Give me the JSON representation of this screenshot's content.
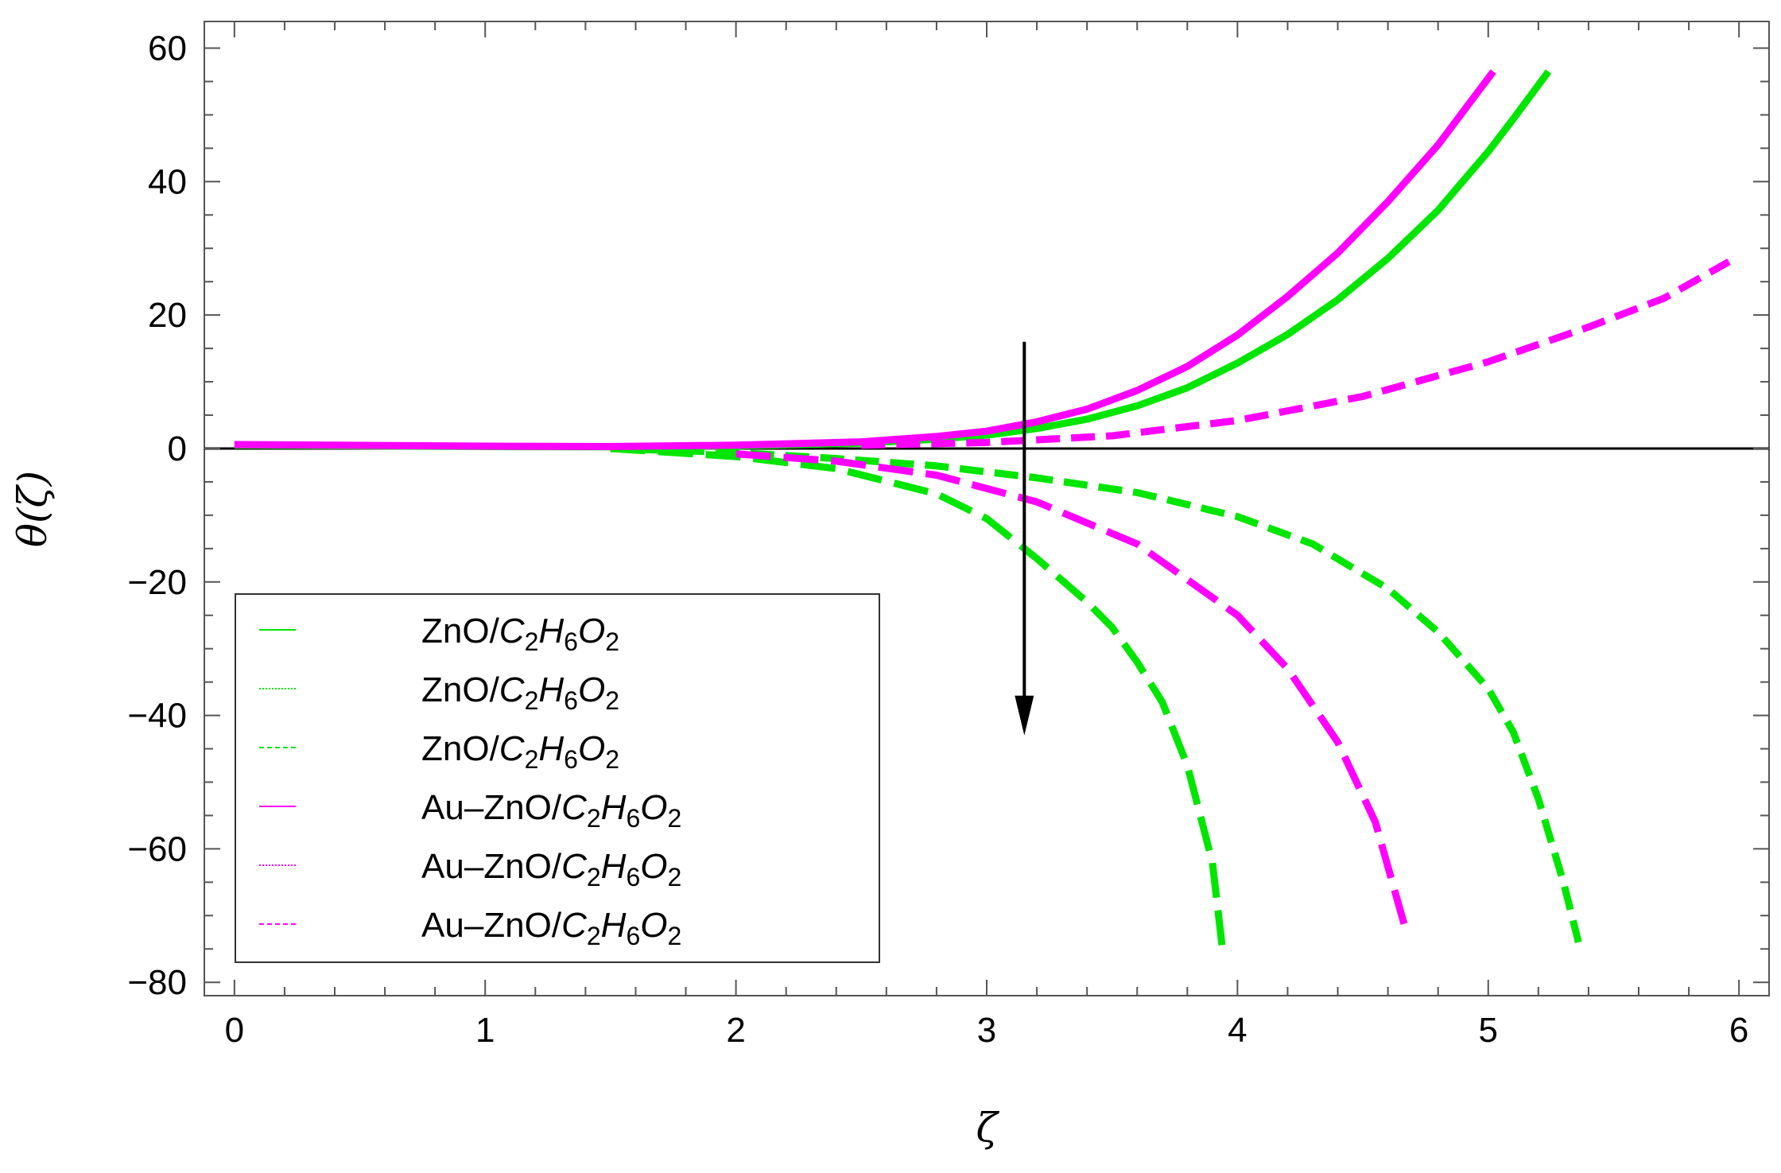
{
  "chart_data": {
    "type": "line",
    "xlabel": "ζ",
    "ylabel": "θ(ζ)",
    "xlim": [
      -0.12,
      6.12
    ],
    "ylim": [
      -82,
      64
    ],
    "xticks": [
      0,
      1,
      2,
      3,
      4,
      5,
      6
    ],
    "yticks": [
      -80,
      -60,
      -40,
      -20,
      0,
      20,
      40,
      60
    ],
    "ytick_labels": [
      "−80",
      "−60",
      "−40",
      "−20",
      "0",
      "20",
      "40",
      "60"
    ],
    "zero_line": true,
    "grid": false,
    "legend_position": "bottom-left",
    "annotation": {
      "type": "arrow",
      "direction": "down",
      "x": 3.15,
      "y_from": 16,
      "y_to": -43
    },
    "series": [
      {
        "name": "ZnO/C2H6O2",
        "legend_parts": [
          "ZnO/",
          "C",
          "2",
          "H",
          "6",
          "O",
          "2"
        ],
        "color": "#00e600",
        "style": "solid",
        "lw": 9,
        "points": [
          [
            0,
            0.5
          ],
          [
            1,
            0.3
          ],
          [
            1.5,
            0.25
          ],
          [
            2,
            0.4
          ],
          [
            2.5,
            0.8
          ],
          [
            2.8,
            1.4
          ],
          [
            3,
            2.0
          ],
          [
            3.2,
            3.0
          ],
          [
            3.4,
            4.4
          ],
          [
            3.6,
            6.4
          ],
          [
            3.8,
            9.1
          ],
          [
            4,
            12.8
          ],
          [
            4.2,
            17.1
          ],
          [
            4.4,
            22.3
          ],
          [
            4.6,
            28.5
          ],
          [
            4.8,
            35.7
          ],
          [
            5,
            44.5
          ],
          [
            5.1,
            49.4
          ],
          [
            5.24,
            56.5
          ]
        ]
      },
      {
        "name": "ZnO/C2H6O2",
        "legend_parts": [
          "ZnO/",
          "C",
          "2",
          "H",
          "6",
          "O",
          "2"
        ],
        "color": "#00e600",
        "style": "dashed",
        "lw": 9,
        "points": [
          [
            1.5,
            0
          ],
          [
            2,
            -0.6
          ],
          [
            2.4,
            -1.5
          ],
          [
            2.8,
            -2.6
          ],
          [
            3.2,
            -4.4
          ],
          [
            3.6,
            -6.6
          ],
          [
            4,
            -10.2
          ],
          [
            4.3,
            -14.3
          ],
          [
            4.6,
            -21.0
          ],
          [
            4.8,
            -27.5
          ],
          [
            5,
            -36.0
          ],
          [
            5.1,
            -42.5
          ],
          [
            5.2,
            -52.5
          ],
          [
            5.3,
            -65.0
          ],
          [
            5.36,
            -74.0
          ]
        ]
      },
      {
        "name": "ZnO/C2H6O2",
        "legend_parts": [
          "ZnO/",
          "C",
          "2",
          "H",
          "6",
          "O",
          "2"
        ],
        "color": "#00e600",
        "style": "dashed",
        "lw": 9,
        "points": [
          [
            1.5,
            0
          ],
          [
            2,
            -1.2
          ],
          [
            2.4,
            -3.0
          ],
          [
            2.8,
            -6.8
          ],
          [
            3,
            -10.5
          ],
          [
            3.2,
            -16.5
          ],
          [
            3.4,
            -23.0
          ],
          [
            3.5,
            -26.8
          ],
          [
            3.6,
            -32.0
          ],
          [
            3.7,
            -38.0
          ],
          [
            3.8,
            -47.5
          ],
          [
            3.9,
            -62.0
          ],
          [
            3.94,
            -75.0
          ]
        ]
      },
      {
        "name": "Au–ZnO/C2H6O2",
        "legend_parts": [
          "Au–ZnO/",
          "C",
          "2",
          "H",
          "6",
          "O",
          "2"
        ],
        "color": "#ff00ff",
        "style": "solid",
        "lw": 9,
        "points": [
          [
            0,
            0.6
          ],
          [
            1,
            0.35
          ],
          [
            1.5,
            0.3
          ],
          [
            2,
            0.5
          ],
          [
            2.5,
            1.0
          ],
          [
            2.8,
            1.8
          ],
          [
            3,
            2.6
          ],
          [
            3.2,
            4.0
          ],
          [
            3.4,
            5.9
          ],
          [
            3.6,
            8.7
          ],
          [
            3.8,
            12.3
          ],
          [
            4,
            17.0
          ],
          [
            4.2,
            22.8
          ],
          [
            4.4,
            29.3
          ],
          [
            4.6,
            37.0
          ],
          [
            4.8,
            45.5
          ],
          [
            5.02,
            56.5
          ]
        ]
      },
      {
        "name": "Au–ZnO/C2H6O2",
        "legend_parts": [
          "Au–ZnO/",
          "C",
          "2",
          "H",
          "6",
          "O",
          "2"
        ],
        "color": "#ff00ff",
        "style": "dashed",
        "lw": 9,
        "points": [
          [
            2.5,
            0.5
          ],
          [
            3,
            0.9
          ],
          [
            3.5,
            1.9
          ],
          [
            4,
            4.2
          ],
          [
            4.5,
            7.8
          ],
          [
            5,
            13.0
          ],
          [
            5.4,
            18.2
          ],
          [
            5.7,
            22.5
          ],
          [
            5.96,
            28.0
          ]
        ]
      },
      {
        "name": "Au–ZnO/C2H6O2",
        "legend_parts": [
          "Au–ZnO/",
          "C",
          "2",
          "H",
          "6",
          "O",
          "2"
        ],
        "color": "#ff00ff",
        "style": "dashed",
        "lw": 9,
        "points": [
          [
            2,
            -0.8
          ],
          [
            2.4,
            -1.9
          ],
          [
            2.8,
            -4.0
          ],
          [
            3.2,
            -8.0
          ],
          [
            3.6,
            -14.3
          ],
          [
            4,
            -25.0
          ],
          [
            4.2,
            -33.0
          ],
          [
            4.4,
            -44.0
          ],
          [
            4.55,
            -56.0
          ],
          [
            4.67,
            -72.0
          ]
        ]
      }
    ]
  }
}
